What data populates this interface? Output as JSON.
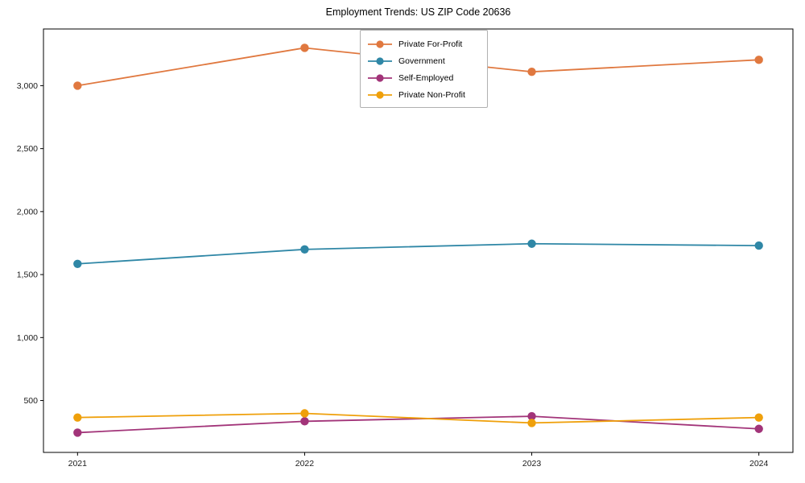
{
  "chart_data": {
    "type": "line",
    "title": "Employment Trends: US ZIP Code 20636",
    "xlabel": "",
    "ylabel": "",
    "x": [
      2021,
      2022,
      2023,
      2024
    ],
    "xtick_labels": [
      "2021",
      "2022",
      "2023",
      "2024"
    ],
    "xlim": [
      2020.85,
      2024.15
    ],
    "ylim": [
      88,
      3450
    ],
    "yticks": [
      {
        "value": 500,
        "label": "500"
      },
      {
        "value": 1000,
        "label": "1,000"
      },
      {
        "value": 1500,
        "label": "1,500"
      },
      {
        "value": 2000,
        "label": "2,000"
      },
      {
        "value": 2500,
        "label": "2,500"
      },
      {
        "value": 3000,
        "label": "3,000"
      }
    ],
    "grid": false,
    "legend_position": "upper center",
    "frame": true,
    "series": [
      {
        "name": "Private For-Profit",
        "color": "#e0783f",
        "values": [
          3000,
          3300,
          3110,
          3205
        ]
      },
      {
        "name": "Government",
        "color": "#2f87a6",
        "values": [
          1585,
          1700,
          1745,
          1730
        ]
      },
      {
        "name": "Self-Employed",
        "color": "#a23479",
        "values": [
          245,
          335,
          375,
          275
        ]
      },
      {
        "name": "Private Non-Profit",
        "color": "#efa00b",
        "values": [
          365,
          398,
          322,
          365
        ]
      }
    ]
  }
}
